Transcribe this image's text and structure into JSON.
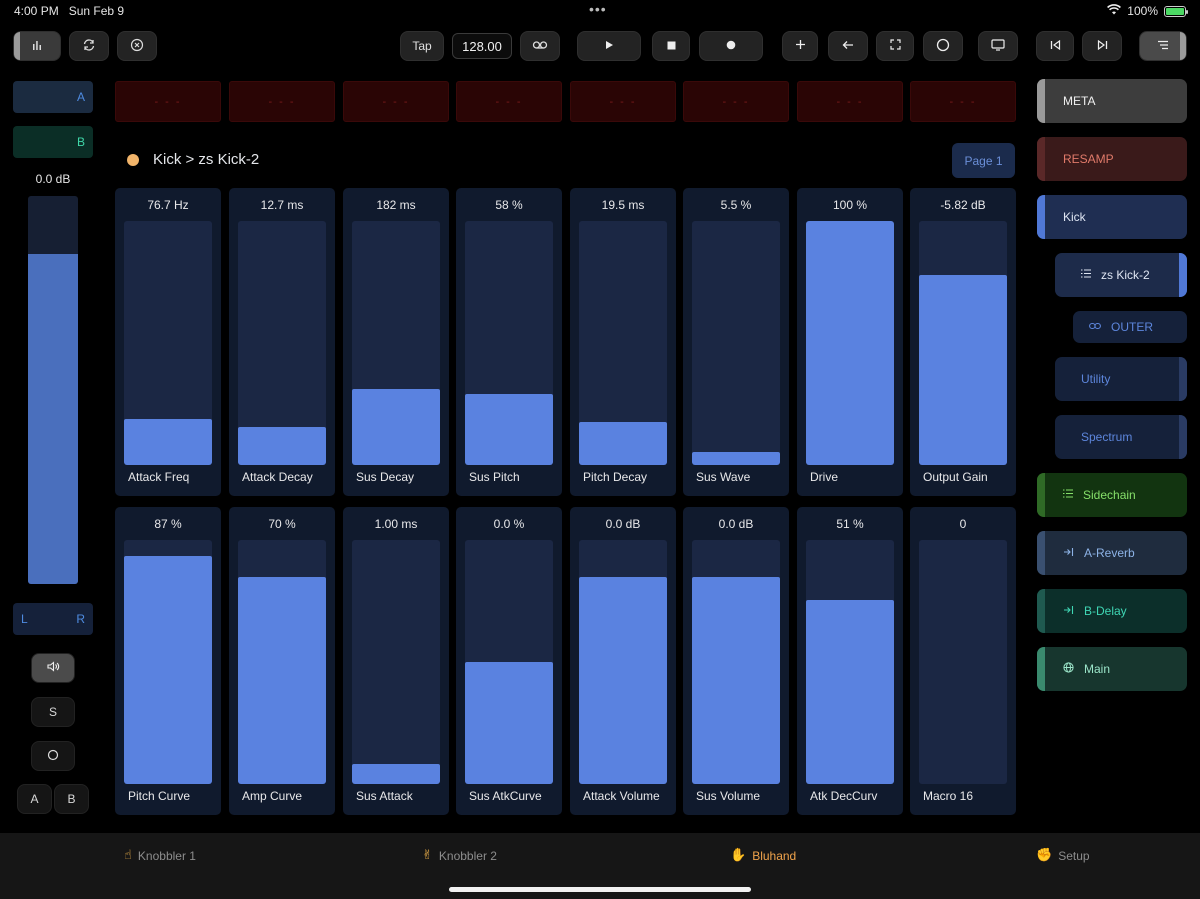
{
  "status": {
    "time": "4:00 PM",
    "date": "Sun Feb 9",
    "battery": "100%"
  },
  "toolbar": {
    "tap_label": "Tap",
    "tempo": "128.00"
  },
  "left": {
    "a_label": "A",
    "b_label": "B",
    "volume_label": "0.0 dB",
    "volume_level": 0.85,
    "pan_left": "L",
    "pan_right": "R",
    "solo_label": "S",
    "ab_a": "A",
    "ab_b": "B"
  },
  "pads": [
    "- - -",
    "- - -",
    "- - -",
    "- - -",
    "- - -",
    "- - -",
    "- - -",
    "- - -"
  ],
  "breadcrumb": "Kick > zs Kick-2",
  "page_label": "Page 1",
  "macros": [
    {
      "name": "Attack Freq",
      "value": "76.7 Hz",
      "level": 0.19
    },
    {
      "name": "Attack Decay",
      "value": "12.7 ms",
      "level": 0.155
    },
    {
      "name": "Sus Decay",
      "value": "182 ms",
      "level": 0.31
    },
    {
      "name": "Sus Pitch",
      "value": "58 %",
      "level": 0.29
    },
    {
      "name": "Pitch Decay",
      "value": "19.5 ms",
      "level": 0.175
    },
    {
      "name": "Sus Wave",
      "value": "5.5 %",
      "level": 0.055
    },
    {
      "name": "Drive",
      "value": "100 %",
      "level": 1.0
    },
    {
      "name": "Output Gain",
      "value": "-5.82 dB",
      "level": 0.78
    },
    {
      "name": "Pitch Curve",
      "value": "87 %",
      "level": 0.935
    },
    {
      "name": "Amp Curve",
      "value": "70 %",
      "level": 0.85
    },
    {
      "name": "Sus Attack",
      "value": "1.00 ms",
      "level": 0.08
    },
    {
      "name": "Sus AtkCurve",
      "value": "0.0 %",
      "level": 0.5
    },
    {
      "name": "Attack Volume",
      "value": "0.0 dB",
      "level": 0.85
    },
    {
      "name": "Sus Volume",
      "value": "0.0 dB",
      "level": 0.85
    },
    {
      "name": "Atk DecCurv",
      "value": "51 %",
      "level": 0.755
    },
    {
      "name": "Macro 16",
      "value": "0",
      "level": 0
    }
  ],
  "chain": [
    {
      "label": "META",
      "icon": "",
      "bg": "#3d3d3d",
      "fg": "#f0f0f0",
      "bar": "#9a9a9a"
    },
    {
      "label": "RESAMP",
      "icon": "",
      "bg": "#3a1a1a",
      "fg": "#e07a6a",
      "bar": "#5a2828"
    },
    {
      "label": "Kick",
      "icon": "",
      "bg": "#1f2e52",
      "fg": "#dfe6f3",
      "bar": "#5078d6"
    },
    {
      "label": "zs Kick-2",
      "icon": "list-icon",
      "bg": "#1d2b4a",
      "fg": "#dfe6f3",
      "bar": "",
      "rbar": "#5078d6"
    },
    {
      "label": "OUTER",
      "icon": "link-icon",
      "bg": "#15213a",
      "fg": "#5d86dc",
      "bar": ""
    },
    {
      "label": "Utility",
      "icon": "",
      "bg": "#15213a",
      "fg": "#5d86dc",
      "bar": "",
      "rbar": "#2a3b63"
    },
    {
      "label": "Spectrum",
      "icon": "",
      "bg": "#15213a",
      "fg": "#5d86dc",
      "bar": "",
      "rbar": "#2a3b63"
    },
    {
      "label": "Sidechain",
      "icon": "list-icon",
      "bg": "#123410",
      "fg": "#86e06a",
      "bar": "#2f6a26"
    },
    {
      "label": "A-Reverb",
      "icon": "return-icon",
      "bg": "#1f2c3e",
      "fg": "#8db3e6",
      "bar": "#3a5070"
    },
    {
      "label": "B-Delay",
      "icon": "return-icon",
      "bg": "#0c2f2a",
      "fg": "#3fd6b4",
      "bar": "#1f5a50"
    },
    {
      "label": "Main",
      "icon": "globe-icon",
      "bg": "#17362e",
      "fg": "#9be5c9",
      "bar": "#3a8a6e"
    }
  ],
  "nav": [
    {
      "label": "Knobbler 1",
      "icon": "☝"
    },
    {
      "label": "Knobbler 2",
      "icon": "✌"
    },
    {
      "label": "Bluhand",
      "icon": "✋"
    },
    {
      "label": "Setup",
      "icon": "✊"
    }
  ]
}
